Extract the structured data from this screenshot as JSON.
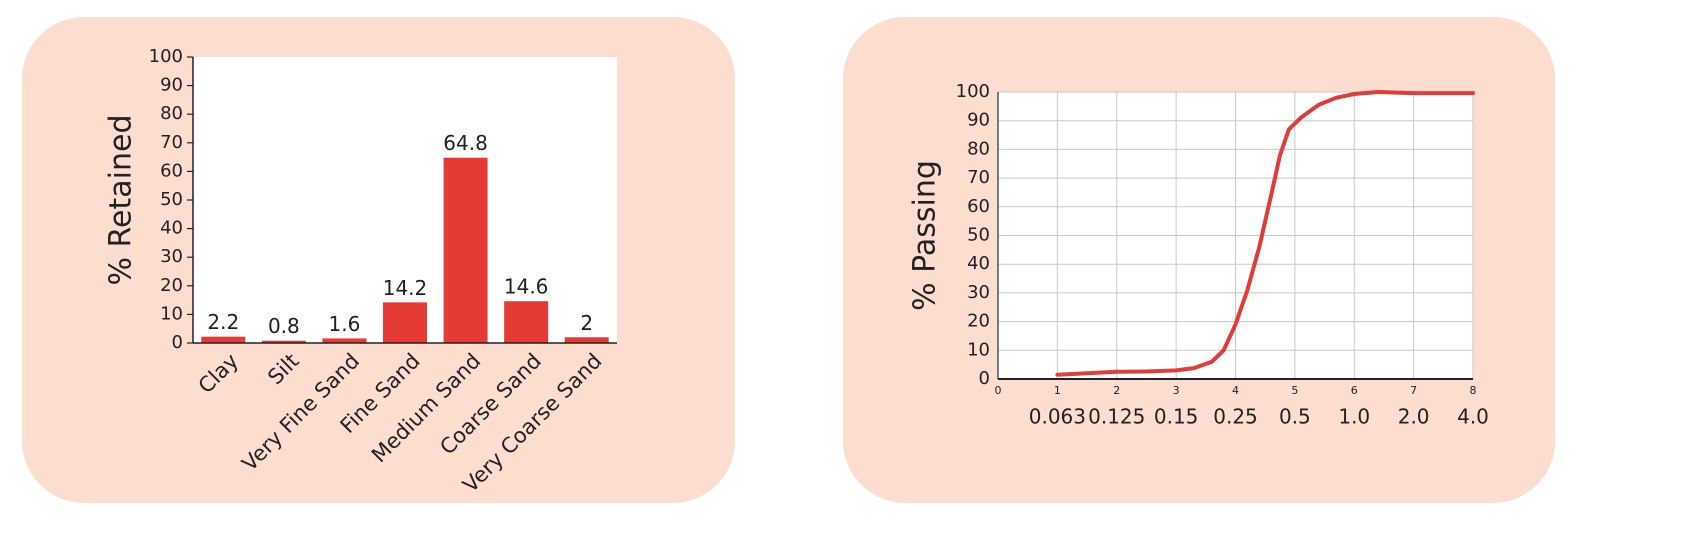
{
  "chart_data": [
    {
      "type": "bar",
      "ylabel": "% Retained",
      "categories": [
        "Clay",
        "Silt",
        "Very Fine Sand",
        "Fine Sand",
        "Medium Sand",
        "Coarse Sand",
        "Very Coarse Sand"
      ],
      "values": [
        2.2,
        0.8,
        1.6,
        14.2,
        64.8,
        14.6,
        2
      ],
      "color": "#e53a35",
      "ylim": [
        0,
        100
      ],
      "yticks": [
        0,
        10,
        20,
        30,
        40,
        50,
        60,
        70,
        80,
        90,
        100
      ],
      "grid": false
    },
    {
      "type": "line",
      "ylabel": "% Passing",
      "x": [
        1,
        1.5,
        2,
        2.5,
        3,
        3.3,
        3.6,
        3.8,
        4,
        4.2,
        4.4,
        4.6,
        4.75,
        4.9,
        5.1,
        5.4,
        5.7,
        6,
        6.4,
        7,
        8
      ],
      "values": [
        1.5,
        2,
        2.5,
        2.6,
        3,
        3.8,
        6,
        10,
        19,
        31,
        46,
        64,
        78,
        87,
        91,
        95.5,
        98,
        99.3,
        100,
        99.6,
        99.6
      ],
      "color": "#e03c3a",
      "xlim": [
        0,
        8
      ],
      "xticks": [
        0,
        1,
        2,
        3,
        4,
        5,
        6,
        7,
        8
      ],
      "x2ticks": [
        {
          "value": 1,
          "label": "0.063"
        },
        {
          "value": 2,
          "label": "0.125"
        },
        {
          "value": 3,
          "label": "0.15"
        },
        {
          "value": 4,
          "label": "0.25"
        },
        {
          "value": 5,
          "label": "0.5"
        },
        {
          "value": 6,
          "label": "1.0"
        },
        {
          "value": 7,
          "label": "2.0"
        },
        {
          "value": 8,
          "label": "4.0"
        }
      ],
      "ylim": [
        0,
        100
      ],
      "yticks": [
        0,
        10,
        20,
        30,
        40,
        50,
        60,
        70,
        80,
        90,
        100
      ],
      "grid": true
    }
  ]
}
